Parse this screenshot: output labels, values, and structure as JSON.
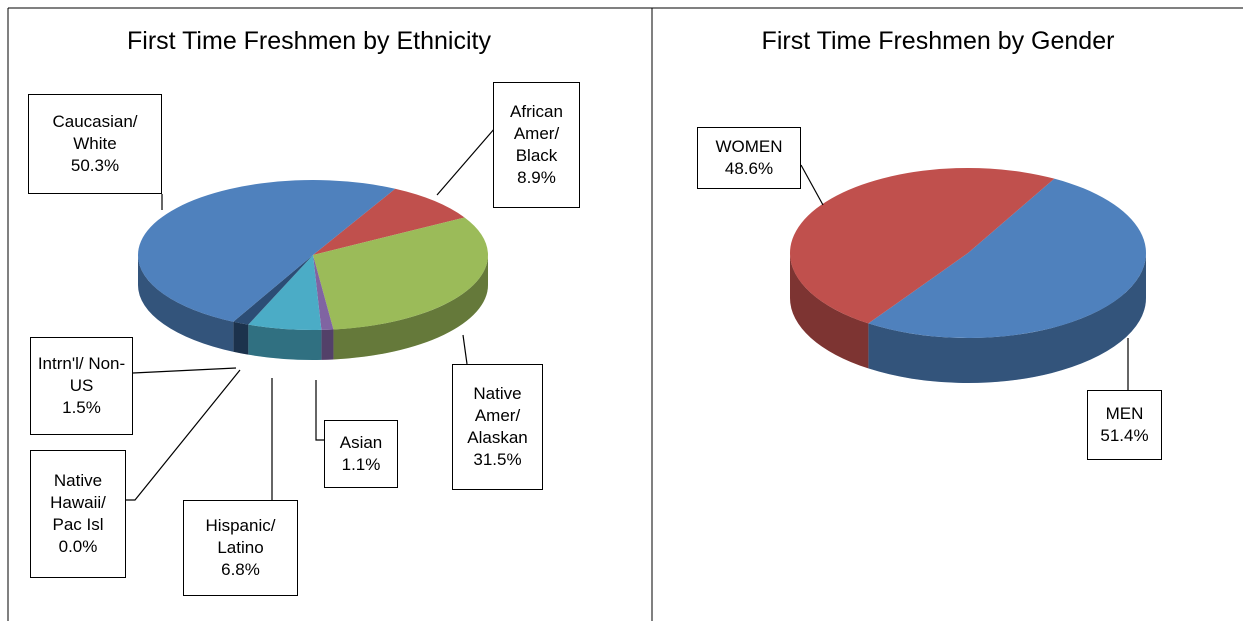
{
  "chart_data": [
    {
      "type": "pie",
      "title": "First Time Freshmen by Ethnicity",
      "categories": [
        "African Amer/ Black",
        "Native Amer/ Alaskan",
        "Asian",
        "Hispanic/ Latino",
        "Native Hawaii/ Pac Isl",
        "Intrn'l/ Non-US",
        "Caucasian/ White"
      ],
      "values": [
        8.9,
        31.5,
        1.1,
        6.8,
        0.0,
        1.5,
        50.3
      ],
      "value_labels": [
        "8.9%",
        "31.5%",
        "1.1%",
        "6.8%",
        "0.0%",
        "1.5%",
        "50.3%"
      ],
      "colors": [
        "#c0504d",
        "#9bbb59",
        "#8064a2",
        "#4bacc6",
        "#f79646",
        "#2c4d75",
        "#4f81bd"
      ]
    },
    {
      "type": "pie",
      "title": "First Time Freshmen by Gender",
      "categories": [
        "MEN",
        "WOMEN"
      ],
      "values": [
        51.4,
        48.6
      ],
      "value_labels": [
        "51.4%",
        "48.6%"
      ],
      "colors": [
        "#4f81bd",
        "#c0504d"
      ]
    }
  ]
}
